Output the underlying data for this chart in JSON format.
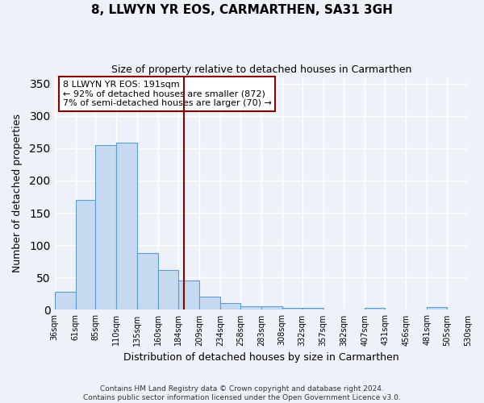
{
  "title": "8, LLWYN YR EOS, CARMARTHEN, SA31 3GH",
  "subtitle": "Size of property relative to detached houses in Carmarthen",
  "xlabel": "Distribution of detached houses by size in Carmarthen",
  "ylabel": "Number of detached properties",
  "footer_lines": [
    "Contains HM Land Registry data © Crown copyright and database right 2024.",
    "Contains public sector information licensed under the Open Government Licence v3.0."
  ],
  "bin_edges": [
    36,
    61,
    85,
    110,
    135,
    160,
    184,
    209,
    234,
    258,
    283,
    308,
    332,
    357,
    382,
    407,
    431,
    456,
    481,
    505,
    530
  ],
  "bar_heights": [
    28,
    170,
    255,
    259,
    88,
    62,
    46,
    20,
    11,
    6,
    5,
    3,
    3,
    0,
    0,
    3,
    0,
    0,
    4,
    0
  ],
  "bar_color": "#c6d9f0",
  "bar_edgecolor": "#5a9fd4",
  "property_line_x": 191,
  "property_line_color": "#8b0000",
  "annotation_title": "8 LLWYN YR EOS: 191sqm",
  "annotation_line1": "← 92% of detached houses are smaller (872)",
  "annotation_line2": "7% of semi-detached houses are larger (70) →",
  "annotation_box_color": "#ffffff",
  "annotation_box_edgecolor": "#8b0000",
  "ylim": [
    0,
    360
  ],
  "xlim": [
    36,
    530
  ],
  "background_color": "#eef2f8",
  "grid_color": "#ffffff",
  "tick_labels": [
    "36sqm",
    "61sqm",
    "85sqm",
    "110sqm",
    "135sqm",
    "160sqm",
    "184sqm",
    "209sqm",
    "234sqm",
    "258sqm",
    "283sqm",
    "308sqm",
    "332sqm",
    "357sqm",
    "382sqm",
    "407sqm",
    "431sqm",
    "456sqm",
    "481sqm",
    "505sqm",
    "530sqm"
  ]
}
